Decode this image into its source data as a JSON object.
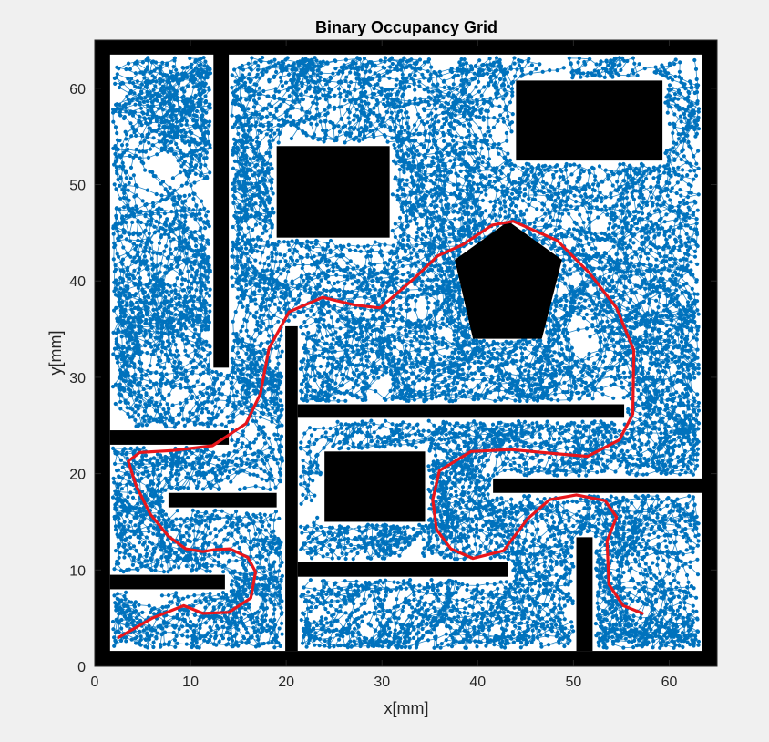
{
  "chart_data": {
    "type": "scatter",
    "title": "Binary Occupancy Grid",
    "xlabel": "x[mm]",
    "ylabel": "y[mm]",
    "xlim": [
      0,
      65
    ],
    "ylim": [
      0,
      65
    ],
    "x_ticks": [
      0,
      10,
      20,
      30,
      40,
      50,
      60
    ],
    "y_ticks": [
      0,
      10,
      20,
      30,
      40,
      50,
      60
    ],
    "grid": false,
    "colors": {
      "tree": "#0072BD",
      "path": "#e8161b",
      "obstacle": "#000000",
      "free": "#ffffff",
      "figure_bg": "#f0f0f0"
    },
    "obstacles": {
      "border": [
        [
          0,
          0,
          65,
          1.6
        ],
        [
          0,
          63.5,
          65,
          65
        ],
        [
          0,
          0,
          1.6,
          65
        ],
        [
          63.4,
          0,
          65,
          65
        ]
      ],
      "walls": [
        [
          12.4,
          31,
          14,
          65
        ],
        [
          1.6,
          23,
          14,
          24.5
        ],
        [
          1.6,
          8,
          13.6,
          9.5
        ],
        [
          7.7,
          16.5,
          19,
          18
        ],
        [
          19.9,
          1.6,
          21.2,
          35.3
        ],
        [
          21.2,
          25.8,
          55.3,
          27.2
        ],
        [
          21.2,
          9.3,
          43.2,
          10.8
        ],
        [
          41.6,
          18,
          63.4,
          19.5
        ],
        [
          50.3,
          1.6,
          52,
          13.4
        ]
      ],
      "rectangles": [
        [
          19,
          44.5,
          30.8,
          54
        ],
        [
          24,
          15,
          34.5,
          22.3
        ],
        [
          44,
          52.5,
          59.3,
          60.8
        ]
      ],
      "polygons": [
        [
          [
            43.2,
            46.2
          ],
          [
            48.8,
            42.2
          ],
          [
            46.7,
            34
          ],
          [
            39.5,
            34
          ],
          [
            37.6,
            42.2
          ]
        ]
      ]
    },
    "series": [
      {
        "type": "line",
        "values": [
          [
            2.5,
            3
          ],
          [
            6,
            5
          ],
          [
            9.3,
            6.3
          ],
          [
            11.3,
            5.5
          ],
          [
            14,
            5.6
          ],
          [
            16.3,
            7.1
          ],
          [
            16.8,
            9.8
          ],
          [
            16,
            11.3
          ],
          [
            14.1,
            12.2
          ],
          [
            12.5,
            12.1
          ],
          [
            11.3,
            11.9
          ],
          [
            9.5,
            12.2
          ],
          [
            7.7,
            13.5
          ],
          [
            5.8,
            15.8
          ],
          [
            4.3,
            18.8
          ],
          [
            3.5,
            21.3
          ],
          [
            4.7,
            22.2
          ],
          [
            8.2,
            22.4
          ],
          [
            12.3,
            22.9
          ],
          [
            15.8,
            25.2
          ],
          [
            17.3,
            28.3
          ],
          [
            18.2,
            33
          ],
          [
            20.3,
            36.8
          ],
          [
            23.8,
            38.3
          ],
          [
            27.2,
            37.5
          ],
          [
            29.8,
            37.2
          ],
          [
            33.3,
            40.2
          ],
          [
            35.8,
            42.6
          ],
          [
            38.5,
            43.8
          ],
          [
            41.5,
            45.8
          ],
          [
            43.7,
            46.2
          ],
          [
            48.3,
            44.2
          ],
          [
            51.7,
            40.8
          ],
          [
            54.5,
            37.2
          ],
          [
            56.3,
            32.8
          ],
          [
            56.2,
            26.2
          ],
          [
            54.8,
            23.5
          ],
          [
            51.5,
            21.8
          ],
          [
            47.8,
            22.1
          ],
          [
            43.5,
            22.5
          ],
          [
            39.3,
            22.3
          ],
          [
            36,
            20.3
          ],
          [
            35.3,
            17.3
          ],
          [
            35.7,
            14.2
          ],
          [
            37.2,
            12.2
          ],
          [
            39.5,
            11.2
          ],
          [
            42.7,
            12
          ],
          [
            45.2,
            15.3
          ],
          [
            47.5,
            17.3
          ],
          [
            50.3,
            17.8
          ],
          [
            53.3,
            17.2
          ],
          [
            54.5,
            15.5
          ],
          [
            53.5,
            13
          ],
          [
            53.7,
            8.5
          ],
          [
            55.2,
            6.3
          ],
          [
            57.2,
            5.5
          ]
        ]
      }
    ]
  }
}
